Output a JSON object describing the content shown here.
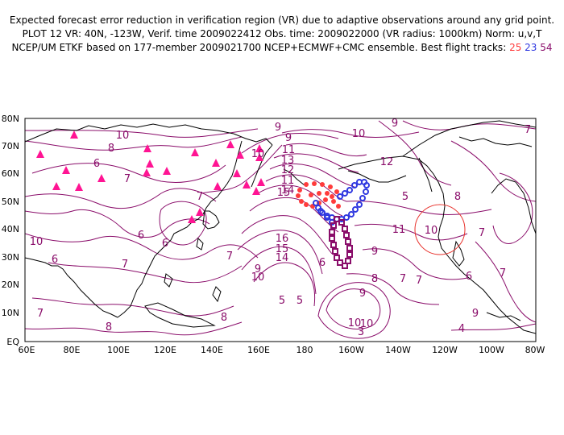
{
  "header": {
    "line1": "Expected forecast error reduction in verification region (VR) due to adaptive observations around any grid point.",
    "line2": "PLOT 12 VR: 40N, -123W, Verif. time 2009022412 Obs. time: 2009022000 (VR radius: 1000km) Norm: u,v,T",
    "line3_prefix": "NCEP/UM ETKF based on 177-member 2009021700 NCEP+ECMWF+CMC ensemble. Best flight tracks:",
    "track_ids": [
      "25",
      "23",
      "54"
    ]
  },
  "map": {
    "lat_labels": [
      "80N",
      "70N",
      "60N",
      "50N",
      "40N",
      "30N",
      "20N",
      "10N",
      "EQ"
    ],
    "lon_labels": [
      "60E",
      "80E",
      "100E",
      "120E",
      "140E",
      "160E",
      "180",
      "160W",
      "140W",
      "120W",
      "100W",
      "80W"
    ],
    "contour_labels": [
      "10",
      "8",
      "6",
      "7",
      "9",
      "10",
      "9",
      "11",
      "10",
      "9",
      "12",
      "13",
      "12",
      "11",
      "14",
      "15",
      "8",
      "7",
      "10",
      "6",
      "6",
      "10",
      "11",
      "7",
      "7",
      "5",
      "6",
      "7",
      "16",
      "15",
      "14",
      "9",
      "10",
      "9",
      "6",
      "9",
      "8",
      "7",
      "5",
      "7",
      "8",
      "10",
      "6",
      "7",
      "7",
      "8",
      "5",
      "9",
      "10",
      "4",
      "7",
      "3"
    ],
    "colors": {
      "coast": "#000000",
      "contour": "#8a0d6a",
      "verification_circle": "#e8302a",
      "track_25": "#ff3b3b",
      "track_23": "#2f38e0",
      "track_54": "#8a0d6a",
      "sites": "#ff1493"
    },
    "verification_region": {
      "center_lat": 40,
      "center_lon": -123,
      "radius_km": 1000
    }
  }
}
